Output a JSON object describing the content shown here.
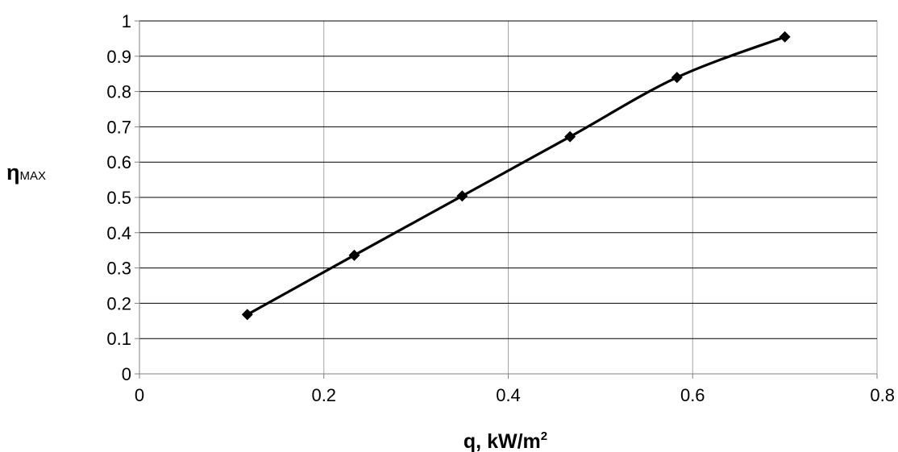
{
  "chart_data": {
    "type": "line",
    "title": "",
    "xlabel": {
      "main": "q, kW/m",
      "superscript": "2"
    },
    "ylabel": {
      "main": "η",
      "subscript": "MAX"
    },
    "xlim": [
      0,
      0.8
    ],
    "ylim": [
      0,
      1
    ],
    "x_ticks": [
      0,
      0.2,
      0.4,
      0.6,
      0.8
    ],
    "x_tick_labels": [
      "0",
      "0.2",
      "0.4",
      "0.6",
      "0.8"
    ],
    "y_ticks": [
      0,
      0.1,
      0.2,
      0.3,
      0.4,
      0.5,
      0.6,
      0.7,
      0.8,
      0.9,
      1
    ],
    "y_tick_labels": [
      "0",
      "0.1",
      "0.2",
      "0.3",
      "0.4",
      "0.5",
      "0.6",
      "0.7",
      "0.8",
      "0.9",
      "1"
    ],
    "grid": {
      "horizontal": true,
      "vertical": true
    },
    "legend": "none",
    "marker": "diamond",
    "colors": {
      "series": "#000000",
      "grid_horizontal": "#000000",
      "grid_vertical": "#a6a6a6",
      "axis": "#7f7f7f"
    },
    "series": [
      {
        "x": [
          0.117,
          0.233,
          0.35,
          0.467,
          0.583,
          0.7
        ],
        "y": [
          0.168,
          0.336,
          0.504,
          0.672,
          0.84,
          0.955
        ]
      }
    ]
  }
}
